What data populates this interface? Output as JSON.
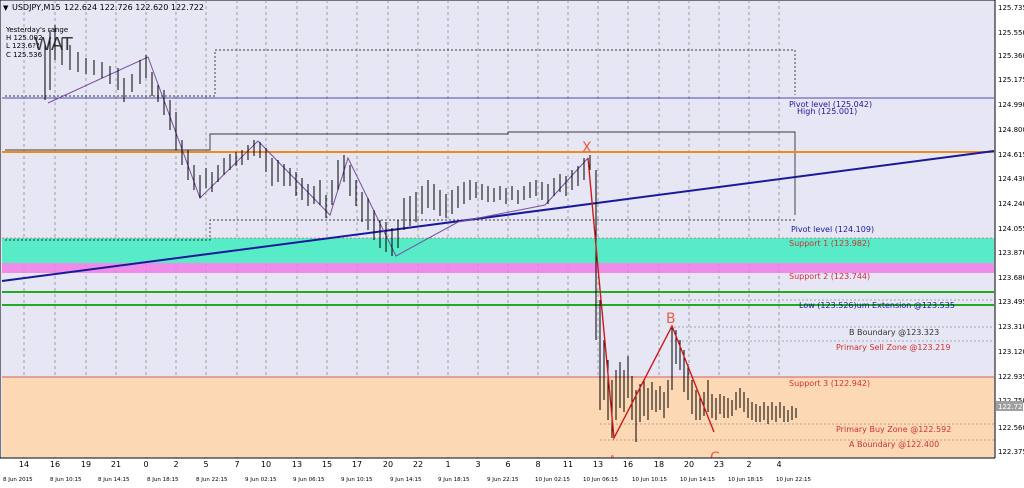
{
  "header": {
    "symbol_timeframe": "USDJPY,M15",
    "ohlc_readout": "122.624 122.726 122.620 122.722",
    "info_lines": [
      "Yesterday's range",
      "H 125.002",
      "L 123.6??",
      "C 125.536"
    ],
    "watermark": "WAT"
  },
  "price_scale": {
    "ticks": [
      "125.735",
      "125.550",
      "125.360",
      "125.175",
      "124.990",
      "124.800",
      "124.615",
      "124.430",
      "124.240",
      "124.055",
      "123.870",
      "123.680",
      "123.495",
      "123.310",
      "123.120",
      "122.935",
      "122.750",
      "122.560",
      "122.375"
    ],
    "current_price": "122.722",
    "current_price_color": "#a0a0a0"
  },
  "time_scale": {
    "hours": [
      "14",
      "16",
      "19",
      "21",
      "0",
      "2",
      "5",
      "7",
      "10",
      "13",
      "15",
      "17",
      "20",
      "22",
      "1",
      "3",
      "6",
      "8",
      "11",
      "13",
      "16",
      "18",
      "20",
      "23",
      "2",
      "4"
    ],
    "dates": [
      "8 Jun 2015",
      "8 Jun 10:15",
      "8 Jun 14:15",
      "8 Jun 18:15",
      "8 Jun 22:15",
      "9 Jun 02:15",
      "9 Jun 06:15",
      "9 Jun 10:15",
      "9 Jun 14:15",
      "9 Jun 18:15",
      "9 Jun 22:15",
      "10 Jun 02:15",
      "10 Jun 06:15",
      "10 Jun 10:15",
      "10 Jun 14:15",
      "10 Jun 18:15",
      "10 Jun 22:15"
    ]
  },
  "levels": {
    "pivot_top": "Pivot level (125.042)",
    "high": "High (125.001)",
    "pivot_mid": "Pivot level (124.109)",
    "support1": "Support 1 (123.982)",
    "support2": "Support 2 (123.744)",
    "low_ext": "Low (123.526)um Extension @123.535",
    "b_boundary": "B Boundary @123.323",
    "primary_sell": "Primary Sell Zone @123.219",
    "support3": "Support 3 (122.942)",
    "primary_buy": "Primary Buy Zone @122.592",
    "a_boundary": "A Boundary @122.400"
  },
  "pattern_labels": {
    "x": "X",
    "b": "B",
    "c": "C",
    "a": "A"
  },
  "colors": {
    "background": "#e6e6f5",
    "orange_line": "#f08a1e",
    "trendline": "#1a1a99",
    "support1_zone": "#57ebc7",
    "support2_zone": "#f07ae6",
    "green_lines": "#22aa22",
    "buy_zone": "#fcd9b4",
    "pattern_line": "#cc1a1a",
    "pattern_label": "#e86040",
    "zigzag": "#7a4fa0"
  }
}
